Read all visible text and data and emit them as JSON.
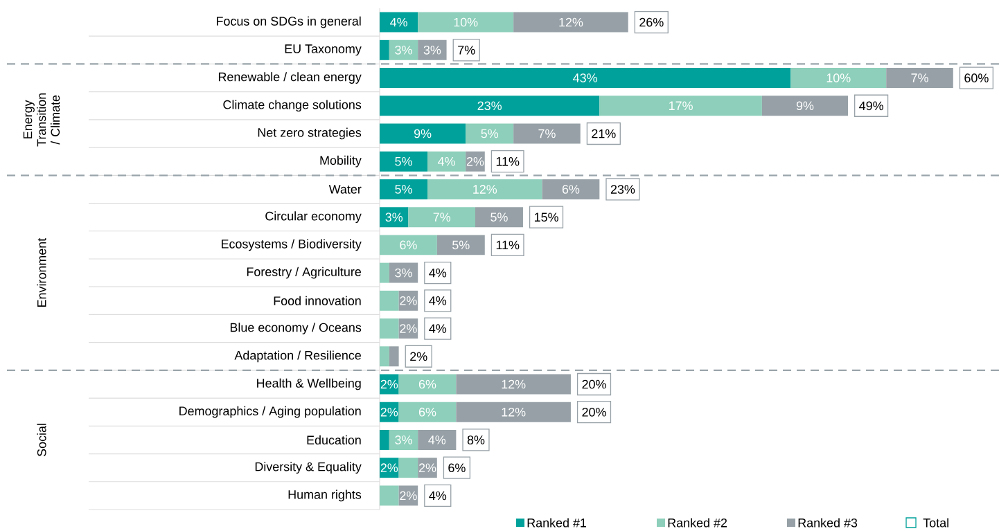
{
  "chart_data": {
    "type": "bar",
    "orientation": "horizontal",
    "stacked": true,
    "legend": "bottom right",
    "categories": [
      "Focus on  SDGs in general",
      "EU Taxonomy",
      "Renewable / clean energy",
      "Climate change solutions",
      "Net zero strategies",
      "Mobility",
      "Water",
      "Circular economy",
      "Ecosystems / Biodiversity",
      "Forestry / Agriculture",
      "Food innovation",
      "Blue economy / Oceans",
      "Adaptation / Resilience",
      "Health & Wellbeing",
      "Demographics / Aging population",
      "Education",
      "Diversity & Equality",
      "Human rights"
    ],
    "series": [
      {
        "name": "Ranked #1",
        "color": "#00a19a",
        "values": [
          4,
          1,
          43,
          23,
          9,
          5,
          5,
          3,
          null,
          null,
          null,
          null,
          null,
          2,
          2,
          1,
          2,
          null
        ],
        "value_labels": [
          "4%",
          null,
          "43%",
          "23%",
          "9%",
          "5%",
          "5%",
          "3%",
          null,
          null,
          null,
          null,
          null,
          "2%",
          "2%",
          null,
          "2%",
          null
        ]
      },
      {
        "name": "Ranked #2",
        "color": "#8dcfba",
        "values": [
          10,
          3,
          10,
          17,
          5,
          4,
          12,
          7,
          6,
          1,
          2,
          2,
          1,
          6,
          6,
          3,
          2,
          2
        ],
        "value_labels": [
          "10%",
          "3%",
          "10%",
          "17%",
          "5%",
          "4%",
          "12%",
          "7%",
          "6%",
          null,
          null,
          null,
          null,
          "6%",
          "6%",
          "3%",
          null,
          null
        ]
      },
      {
        "name": "Ranked #3",
        "color": "#96a0a6",
        "values": [
          12,
          3,
          7,
          9,
          7,
          2,
          6,
          5,
          5,
          3,
          2,
          2,
          1,
          12,
          12,
          4,
          2,
          2
        ],
        "value_labels": [
          "12%",
          "3%",
          "7%",
          "9%",
          "7%",
          "2%",
          "6%",
          "5%",
          "5%",
          "3%",
          "2%",
          "2%",
          null,
          "12%",
          "12%",
          "4%",
          "2%",
          "2%"
        ]
      }
    ],
    "totals": [
      "26%",
      "7%",
      "60%",
      "49%",
      "21%",
      "11%",
      "23%",
      "15%",
      "11%",
      "4%",
      "4%",
      "4%",
      "2%",
      "20%",
      "20%",
      "8%",
      "6%",
      "4%"
    ],
    "annotations": [
      "Energy Transition / Climate",
      "Environment",
      "Social",
      "Total"
    ]
  }
}
